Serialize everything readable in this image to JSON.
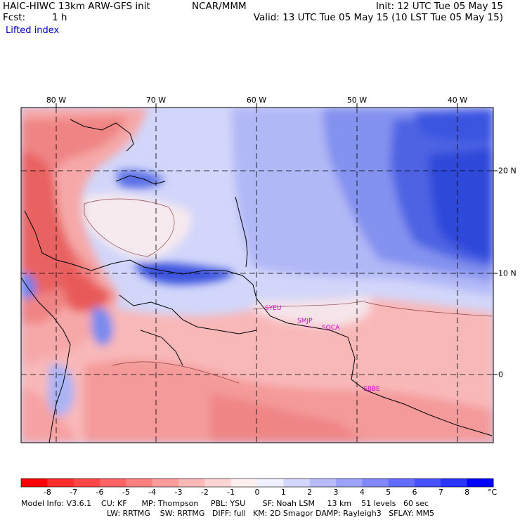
{
  "header": {
    "model": "HAIC-HIWC 13km ARW-GFS init",
    "center": "NCAR/MMM",
    "fcst_label": "Fcst:",
    "fcst_value": "1 h",
    "variable": "Lifted index",
    "init": "Init: 12 UTC Tue 05 May 15",
    "valid": "Valid: 13 UTC Tue 05 May 15 (10 LST Tue 05 May 15)"
  },
  "map": {
    "lon_labels": [
      "80 W",
      "70 W",
      "60 W",
      "50 W",
      "40 W"
    ],
    "lat_labels": [
      "20 N",
      "10 N",
      "0"
    ],
    "stations": [
      "SYEU",
      "SMJP",
      "SOCA",
      "SBBE"
    ],
    "colors": {
      "strong_negative": "#e43a3a",
      "negative": "#f08080",
      "slight_negative": "#f9c2c2",
      "neutral": "#fdf0f0",
      "slight_positive": "#d8dcfb",
      "positive": "#9aa7f5",
      "strong_positive": "#3355ee",
      "very_strong_positive": "#1133dd"
    }
  },
  "colorbar": {
    "ticks": [
      "-8",
      "-7",
      "-6",
      "-5",
      "-4",
      "-3",
      "-2",
      "-1",
      "0",
      "1",
      "2",
      "3",
      "4",
      "5",
      "6",
      "7",
      "8"
    ],
    "unit": "°C",
    "colors": [
      "#ff0000",
      "#ff2a2a",
      "#ff4646",
      "#ff6464",
      "#ff8080",
      "#ff9c9c",
      "#ffb8b8",
      "#ffd4d4",
      "#fff0f0",
      "#f0f0ff",
      "#d4d6ff",
      "#b8bcff",
      "#9ca2ff",
      "#8088ff",
      "#646cff",
      "#4650ff",
      "#2a34ff",
      "#0000ff"
    ]
  },
  "footer": {
    "line1": "Model Info: V3.6.1    CU: KF      MP: Thompson     PBL: YSU       SF: Noah LSM     13 km    51 levels   60 sec",
    "line2": "LW: RRTMG    SW: RRTMG   DIFF: full   KM: 2D Smagor DAMP: Rayleigh3   SFLAY: MM5"
  }
}
